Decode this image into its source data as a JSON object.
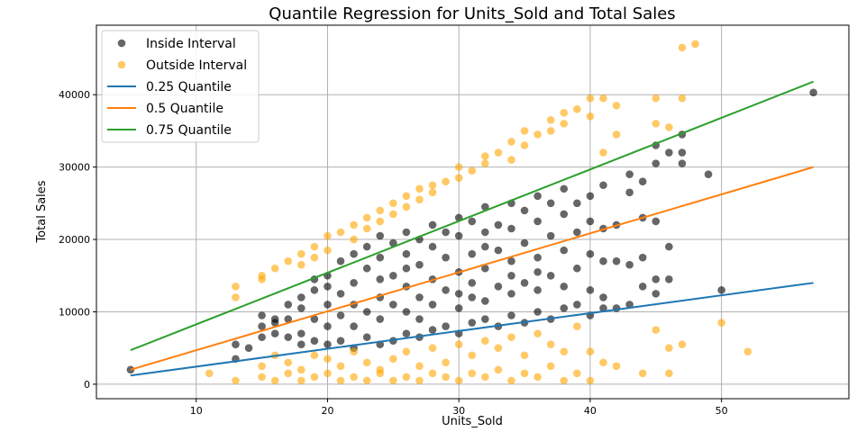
{
  "chart_data": {
    "type": "scatter",
    "title": "Quantile Regression for Units_Sold and Total Sales",
    "xlabel": "Units_Sold",
    "ylabel": "Total Sales",
    "xlim": [
      2.4,
      59.7
    ],
    "ylim": [
      -2000,
      49600
    ],
    "xticks": [
      10,
      20,
      30,
      40,
      50
    ],
    "yticks": [
      0,
      10000,
      20000,
      30000,
      40000
    ],
    "grid": true,
    "legend_position": "top-left",
    "series": [
      {
        "name": "Inside Interval",
        "kind": "scatter",
        "color": "#000000",
        "alpha": 0.6,
        "points": [
          [
            5,
            2000
          ],
          [
            13,
            5500
          ],
          [
            13,
            3500
          ],
          [
            14,
            5000
          ],
          [
            15,
            8000
          ],
          [
            15,
            6500
          ],
          [
            15,
            9500
          ],
          [
            16,
            7000
          ],
          [
            16,
            9000
          ],
          [
            16,
            8500
          ],
          [
            17,
            6500
          ],
          [
            17,
            9000
          ],
          [
            17,
            11000
          ],
          [
            18,
            7000
          ],
          [
            18,
            12000
          ],
          [
            18,
            10500
          ],
          [
            18,
            5500
          ],
          [
            19,
            6000
          ],
          [
            19,
            14500
          ],
          [
            19,
            9000
          ],
          [
            19,
            13000
          ],
          [
            20,
            5500
          ],
          [
            20,
            8000
          ],
          [
            20,
            11000
          ],
          [
            20,
            15000
          ],
          [
            20,
            13500
          ],
          [
            21,
            6000
          ],
          [
            21,
            9500
          ],
          [
            21,
            12500
          ],
          [
            21,
            17000
          ],
          [
            22,
            5000
          ],
          [
            22,
            8000
          ],
          [
            22,
            14000
          ],
          [
            22,
            18000
          ],
          [
            22,
            11000
          ],
          [
            23,
            6500
          ],
          [
            23,
            10000
          ],
          [
            23,
            16000
          ],
          [
            23,
            19000
          ],
          [
            24,
            5500
          ],
          [
            24,
            9000
          ],
          [
            24,
            12000
          ],
          [
            24,
            17500
          ],
          [
            24,
            20500
          ],
          [
            24,
            14500
          ],
          [
            25,
            6000
          ],
          [
            25,
            11000
          ],
          [
            25,
            15000
          ],
          [
            25,
            19500
          ],
          [
            26,
            7000
          ],
          [
            26,
            10000
          ],
          [
            26,
            13500
          ],
          [
            26,
            18000
          ],
          [
            26,
            21000
          ],
          [
            26,
            16000
          ],
          [
            27,
            6500
          ],
          [
            27,
            12000
          ],
          [
            27,
            16500
          ],
          [
            27,
            20000
          ],
          [
            27,
            9000
          ],
          [
            28,
            7500
          ],
          [
            28,
            11000
          ],
          [
            28,
            14500
          ],
          [
            28,
            19000
          ],
          [
            28,
            22000
          ],
          [
            29,
            8000
          ],
          [
            29,
            13000
          ],
          [
            29,
            17500
          ],
          [
            29,
            21000
          ],
          [
            30,
            7000
          ],
          [
            30,
            10500
          ],
          [
            30,
            15500
          ],
          [
            30,
            20500
          ],
          [
            30,
            23000
          ],
          [
            30,
            12500
          ],
          [
            31,
            8500
          ],
          [
            31,
            12000
          ],
          [
            31,
            18000
          ],
          [
            31,
            22500
          ],
          [
            31,
            14000
          ],
          [
            32,
            9000
          ],
          [
            32,
            11500
          ],
          [
            32,
            16000
          ],
          [
            32,
            21000
          ],
          [
            32,
            24500
          ],
          [
            32,
            19000
          ],
          [
            33,
            8000
          ],
          [
            33,
            13500
          ],
          [
            33,
            18500
          ],
          [
            33,
            22000
          ],
          [
            34,
            9500
          ],
          [
            34,
            12500
          ],
          [
            34,
            17000
          ],
          [
            34,
            21500
          ],
          [
            34,
            25000
          ],
          [
            34,
            15000
          ],
          [
            35,
            8500
          ],
          [
            35,
            14000
          ],
          [
            35,
            19500
          ],
          [
            35,
            24000
          ],
          [
            36,
            10000
          ],
          [
            36,
            13000
          ],
          [
            36,
            17500
          ],
          [
            36,
            22500
          ],
          [
            36,
            26000
          ],
          [
            36,
            15500
          ],
          [
            37,
            9000
          ],
          [
            37,
            15000
          ],
          [
            37,
            20500
          ],
          [
            37,
            25000
          ],
          [
            38,
            10500
          ],
          [
            38,
            13500
          ],
          [
            38,
            18500
          ],
          [
            38,
            23500
          ],
          [
            38,
            27000
          ],
          [
            39,
            11000
          ],
          [
            39,
            16000
          ],
          [
            39,
            21000
          ],
          [
            39,
            25000
          ],
          [
            40,
            9500
          ],
          [
            40,
            13000
          ],
          [
            40,
            18000
          ],
          [
            40,
            22500
          ],
          [
            40,
            26000
          ],
          [
            41,
            12000
          ],
          [
            41,
            17000
          ],
          [
            41,
            21500
          ],
          [
            41,
            27500
          ],
          [
            41,
            10500
          ],
          [
            42,
            10500
          ],
          [
            42,
            17000
          ],
          [
            42,
            22000
          ],
          [
            43,
            11000
          ],
          [
            43,
            16500
          ],
          [
            43,
            26500
          ],
          [
            43,
            29000
          ],
          [
            44,
            13500
          ],
          [
            44,
            17500
          ],
          [
            44,
            23000
          ],
          [
            44,
            28000
          ],
          [
            45,
            12500
          ],
          [
            45,
            14500
          ],
          [
            45,
            22500
          ],
          [
            45,
            30500
          ],
          [
            45,
            33000
          ],
          [
            46,
            14500
          ],
          [
            46,
            19000
          ],
          [
            46,
            32000
          ],
          [
            47,
            30500
          ],
          [
            47,
            32000
          ],
          [
            47,
            34500
          ],
          [
            49,
            29000
          ],
          [
            50,
            13000
          ],
          [
            57,
            40300
          ]
        ]
      },
      {
        "name": "Outside Interval",
        "kind": "scatter",
        "color": "#ffa500",
        "alpha": 0.6,
        "points": [
          [
            11,
            1500
          ],
          [
            13,
            500
          ],
          [
            13,
            12000
          ],
          [
            13,
            13500
          ],
          [
            15,
            1000
          ],
          [
            15,
            2500
          ],
          [
            15,
            14500
          ],
          [
            15,
            15000
          ],
          [
            16,
            500
          ],
          [
            16,
            16000
          ],
          [
            16,
            4000
          ],
          [
            17,
            1500
          ],
          [
            17,
            3000
          ],
          [
            17,
            17000
          ],
          [
            18,
            500
          ],
          [
            18,
            2000
          ],
          [
            18,
            18000
          ],
          [
            18,
            16500
          ],
          [
            19,
            1000
          ],
          [
            19,
            4000
          ],
          [
            19,
            19000
          ],
          [
            19,
            17500
          ],
          [
            20,
            1500
          ],
          [
            20,
            3500
          ],
          [
            20,
            20500
          ],
          [
            20,
            18500
          ],
          [
            21,
            500
          ],
          [
            21,
            2500
          ],
          [
            21,
            21000
          ],
          [
            22,
            1000
          ],
          [
            22,
            4500
          ],
          [
            22,
            22000
          ],
          [
            22,
            20000
          ],
          [
            23,
            500
          ],
          [
            23,
            3000
          ],
          [
            23,
            23000
          ],
          [
            23,
            21500
          ],
          [
            24,
            1500
          ],
          [
            24,
            2000
          ],
          [
            24,
            24000
          ],
          [
            24,
            22500
          ],
          [
            25,
            500
          ],
          [
            25,
            3500
          ],
          [
            25,
            25000
          ],
          [
            25,
            23500
          ],
          [
            26,
            1000
          ],
          [
            26,
            4500
          ],
          [
            26,
            26000
          ],
          [
            26,
            24500
          ],
          [
            27,
            500
          ],
          [
            27,
            2500
          ],
          [
            27,
            27000
          ],
          [
            27,
            25500
          ],
          [
            28,
            1500
          ],
          [
            28,
            5000
          ],
          [
            28,
            27500
          ],
          [
            28,
            26500
          ],
          [
            29,
            1000
          ],
          [
            29,
            3000
          ],
          [
            29,
            28000
          ],
          [
            30,
            500
          ],
          [
            30,
            5500
          ],
          [
            30,
            30000
          ],
          [
            30,
            28500
          ],
          [
            31,
            1500
          ],
          [
            31,
            4000
          ],
          [
            31,
            29500
          ],
          [
            32,
            1000
          ],
          [
            32,
            6000
          ],
          [
            32,
            31500
          ],
          [
            32,
            30500
          ],
          [
            33,
            2000
          ],
          [
            33,
            5000
          ],
          [
            33,
            32000
          ],
          [
            34,
            500
          ],
          [
            34,
            6500
          ],
          [
            34,
            33500
          ],
          [
            34,
            31000
          ],
          [
            35,
            1500
          ],
          [
            35,
            4000
          ],
          [
            35,
            35000
          ],
          [
            35,
            33000
          ],
          [
            36,
            1000
          ],
          [
            36,
            7000
          ],
          [
            36,
            34500
          ],
          [
            37,
            2500
          ],
          [
            37,
            5500
          ],
          [
            37,
            36500
          ],
          [
            37,
            35000
          ],
          [
            38,
            500
          ],
          [
            38,
            4500
          ],
          [
            38,
            37500
          ],
          [
            38,
            36000
          ],
          [
            39,
            1500
          ],
          [
            39,
            8000
          ],
          [
            39,
            38000
          ],
          [
            40,
            500
          ],
          [
            40,
            4500
          ],
          [
            40,
            39500
          ],
          [
            40,
            37000
          ],
          [
            41,
            3000
          ],
          [
            41,
            39500
          ],
          [
            41,
            32000
          ],
          [
            42,
            2500
          ],
          [
            42,
            38500
          ],
          [
            42,
            34500
          ],
          [
            44,
            1500
          ],
          [
            45,
            7500
          ],
          [
            45,
            39500
          ],
          [
            45,
            36000
          ],
          [
            46,
            1500
          ],
          [
            46,
            5000
          ],
          [
            46,
            35500
          ],
          [
            47,
            5500
          ],
          [
            47,
            46500
          ],
          [
            47,
            39500
          ],
          [
            48,
            47000
          ],
          [
            50,
            8500
          ],
          [
            52,
            4500
          ]
        ]
      },
      {
        "name": "0.25 Quantile",
        "kind": "line",
        "color": "#1f77b4",
        "points": [
          [
            5,
            1200
          ],
          [
            57,
            14000
          ]
        ]
      },
      {
        "name": "0.5 Quantile",
        "kind": "line",
        "color": "#ff7f0e",
        "points": [
          [
            5,
            2000
          ],
          [
            57,
            30000
          ]
        ]
      },
      {
        "name": "0.75 Quantile",
        "kind": "line",
        "color": "#2ca02c",
        "points": [
          [
            5,
            4700
          ],
          [
            57,
            41800
          ]
        ]
      }
    ]
  }
}
